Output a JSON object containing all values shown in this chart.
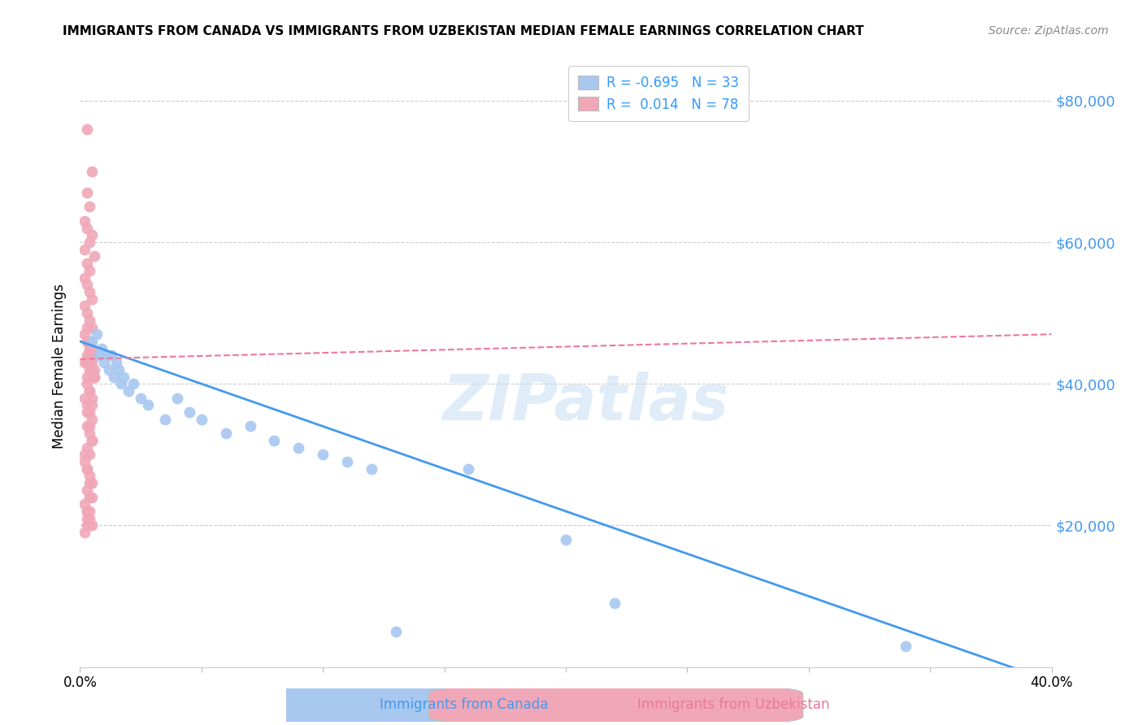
{
  "title": "IMMIGRANTS FROM CANADA VS IMMIGRANTS FROM UZBEKISTAN MEDIAN FEMALE EARNINGS CORRELATION CHART",
  "source": "Source: ZipAtlas.com",
  "ylabel": "Median Female Earnings",
  "y_ticks": [
    0,
    20000,
    40000,
    60000,
    80000
  ],
  "y_tick_labels": [
    "",
    "$20,000",
    "$40,000",
    "$60,000",
    "$80,000"
  ],
  "x_min": 0.0,
  "x_max": 0.4,
  "y_min": 0,
  "y_max": 85000,
  "canada_color": "#a8c8f0",
  "uzbekistan_color": "#f0a8b8",
  "canada_line_color": "#4499ee",
  "uzbekistan_line_color": "#ee7799",
  "legend_text_color": "#3399ff",
  "watermark": "ZIPatlas",
  "legend": {
    "canada_r": "-0.695",
    "canada_n": "33",
    "uzbekistan_r": "0.014",
    "uzbekistan_n": "78"
  },
  "canada_points": [
    [
      0.005,
      46000
    ],
    [
      0.007,
      47000
    ],
    [
      0.008,
      44000
    ],
    [
      0.009,
      45000
    ],
    [
      0.01,
      43000
    ],
    [
      0.011,
      44000
    ],
    [
      0.012,
      42000
    ],
    [
      0.013,
      44000
    ],
    [
      0.014,
      41000
    ],
    [
      0.015,
      43000
    ],
    [
      0.016,
      42000
    ],
    [
      0.017,
      40000
    ],
    [
      0.018,
      41000
    ],
    [
      0.02,
      39000
    ],
    [
      0.022,
      40000
    ],
    [
      0.025,
      38000
    ],
    [
      0.028,
      37000
    ],
    [
      0.035,
      35000
    ],
    [
      0.04,
      38000
    ],
    [
      0.045,
      36000
    ],
    [
      0.05,
      35000
    ],
    [
      0.06,
      33000
    ],
    [
      0.07,
      34000
    ],
    [
      0.08,
      32000
    ],
    [
      0.09,
      31000
    ],
    [
      0.1,
      30000
    ],
    [
      0.11,
      29000
    ],
    [
      0.12,
      28000
    ],
    [
      0.13,
      5000
    ],
    [
      0.16,
      28000
    ],
    [
      0.2,
      18000
    ],
    [
      0.34,
      3000
    ],
    [
      0.22,
      9000
    ]
  ],
  "uzbekistan_points": [
    [
      0.003,
      76000
    ],
    [
      0.005,
      70000
    ],
    [
      0.003,
      67000
    ],
    [
      0.004,
      65000
    ],
    [
      0.002,
      63000
    ],
    [
      0.003,
      62000
    ],
    [
      0.005,
      61000
    ],
    [
      0.004,
      60000
    ],
    [
      0.002,
      59000
    ],
    [
      0.006,
      58000
    ],
    [
      0.003,
      57000
    ],
    [
      0.004,
      56000
    ],
    [
      0.002,
      55000
    ],
    [
      0.003,
      54000
    ],
    [
      0.004,
      53000
    ],
    [
      0.005,
      52000
    ],
    [
      0.002,
      51000
    ],
    [
      0.003,
      50000
    ],
    [
      0.004,
      49000
    ],
    [
      0.005,
      48000
    ],
    [
      0.002,
      47000
    ],
    [
      0.003,
      46000
    ],
    [
      0.004,
      45000
    ],
    [
      0.005,
      44000
    ],
    [
      0.003,
      43000
    ],
    [
      0.004,
      42000
    ],
    [
      0.006,
      41000
    ],
    [
      0.003,
      40000
    ],
    [
      0.004,
      39000
    ],
    [
      0.005,
      38000
    ],
    [
      0.003,
      37000
    ],
    [
      0.004,
      36000
    ],
    [
      0.005,
      35000
    ],
    [
      0.003,
      34000
    ],
    [
      0.004,
      33000
    ],
    [
      0.005,
      32000
    ],
    [
      0.003,
      31000
    ],
    [
      0.004,
      30000
    ],
    [
      0.002,
      29000
    ],
    [
      0.003,
      28000
    ],
    [
      0.004,
      27000
    ],
    [
      0.005,
      26000
    ],
    [
      0.003,
      25000
    ],
    [
      0.004,
      24000
    ],
    [
      0.002,
      23000
    ],
    [
      0.003,
      22000
    ],
    [
      0.004,
      21000
    ],
    [
      0.003,
      20000
    ],
    [
      0.002,
      19000
    ],
    [
      0.004,
      22000
    ],
    [
      0.003,
      21000
    ],
    [
      0.005,
      20000
    ],
    [
      0.002,
      43000
    ],
    [
      0.003,
      41000
    ],
    [
      0.004,
      39000
    ],
    [
      0.005,
      37000
    ],
    [
      0.003,
      44000
    ],
    [
      0.004,
      43000
    ],
    [
      0.005,
      42000
    ],
    [
      0.006,
      41000
    ],
    [
      0.003,
      46000
    ],
    [
      0.004,
      44000
    ],
    [
      0.005,
      43000
    ],
    [
      0.006,
      42000
    ],
    [
      0.003,
      48000
    ],
    [
      0.004,
      46000
    ],
    [
      0.005,
      45000
    ],
    [
      0.006,
      44000
    ],
    [
      0.002,
      38000
    ],
    [
      0.003,
      36000
    ],
    [
      0.004,
      34000
    ],
    [
      0.005,
      32000
    ],
    [
      0.002,
      30000
    ],
    [
      0.003,
      28000
    ],
    [
      0.004,
      26000
    ],
    [
      0.005,
      24000
    ],
    [
      0.003,
      22000
    ],
    [
      0.004,
      20000
    ]
  ]
}
